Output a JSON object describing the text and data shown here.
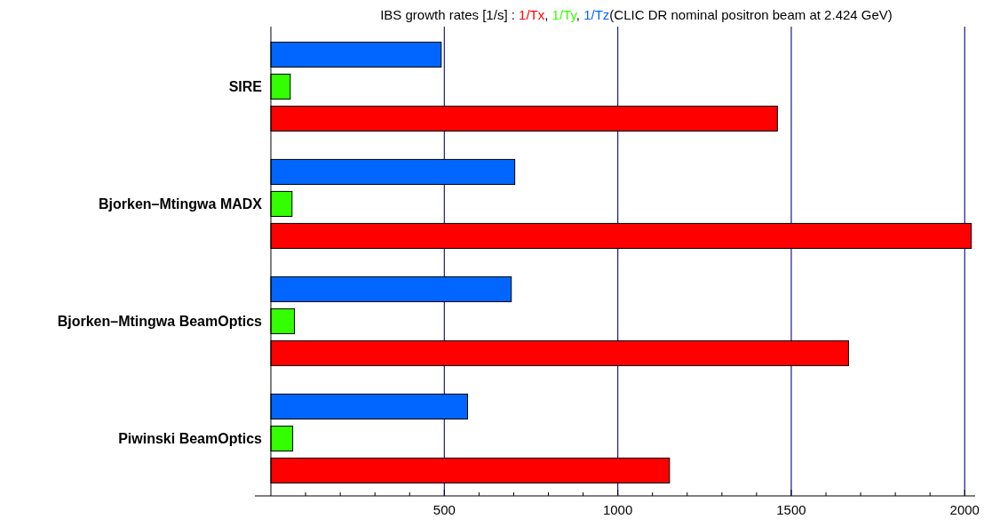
{
  "chart_data": {
    "type": "bar",
    "orientation": "horizontal",
    "title": "IBS growth rates [1/s] :",
    "annotations": [
      ",",
      ",",
      "(CLIC DR nominal positron beam at 2.424 GeV)"
    ],
    "categories": [
      "SIRE",
      "Bjorken–Mtingwa MADX",
      "Bjorken–Mtingwa BeamOptics",
      "Piwinski BeamOptics"
    ],
    "series": [
      {
        "name": "1/Tx",
        "color": "#ff0000",
        "values": [
          1460,
          2019,
          1665,
          1149
        ]
      },
      {
        "name": "1/Ty",
        "color": "#33ff00",
        "values": [
          56,
          61,
          68,
          63
        ]
      },
      {
        "name": "1/Tz",
        "color": "#0066ff",
        "values": [
          491,
          703,
          693,
          567
        ]
      }
    ],
    "xlim": [
      0,
      2030
    ],
    "xticks": [
      {
        "value": 100,
        "label": null
      },
      {
        "value": 200,
        "label": null
      },
      {
        "value": 300,
        "label": null
      },
      {
        "value": 400,
        "label": null
      },
      500,
      {
        "value": 600,
        "label": null
      },
      {
        "value": 700,
        "label": null
      },
      {
        "value": 800,
        "label": null
      },
      {
        "value": 900,
        "label": null
      },
      1000,
      {
        "value": 1100,
        "label": null
      },
      {
        "value": 1200,
        "label": null
      },
      {
        "value": 1300,
        "label": null
      },
      {
        "value": 1400,
        "label": null
      },
      1500,
      {
        "value": 1600,
        "label": null
      },
      {
        "value": 1700,
        "label": null
      },
      {
        "value": 1800,
        "label": null
      },
      {
        "value": 1900,
        "label": null
      },
      2000
    ],
    "grid": "x",
    "legend": "top"
  }
}
